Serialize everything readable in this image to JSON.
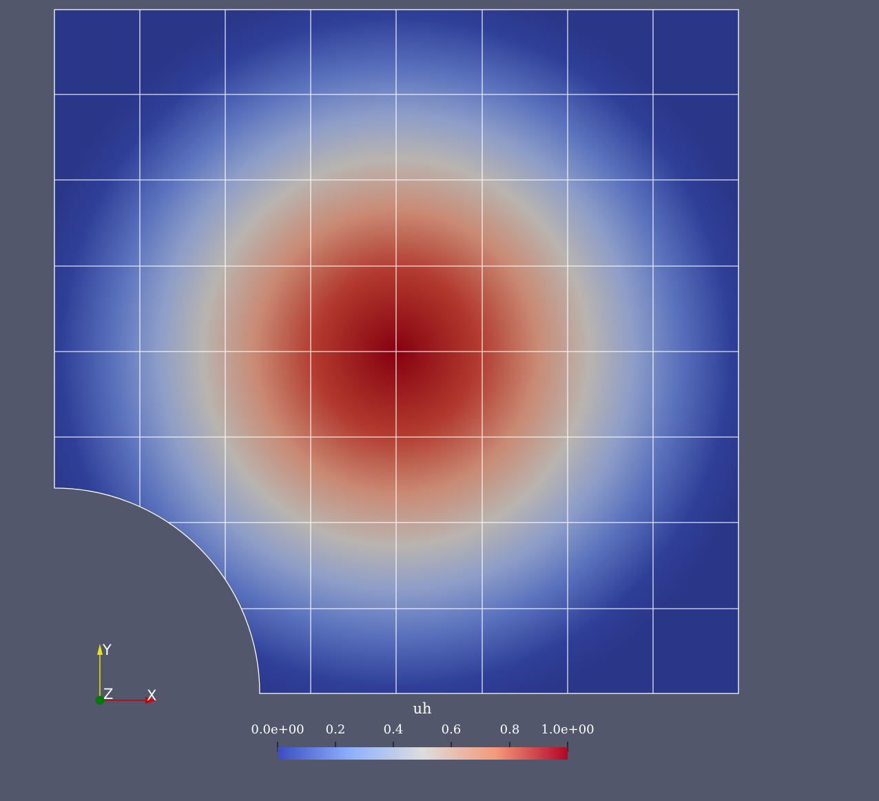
{
  "scene": {
    "background": "#52576b",
    "mesh_line_color": "#ffffff",
    "field": {
      "name": "uh",
      "peak_value": 1.0,
      "min_value": 0.0
    },
    "mesh": {
      "cells_x": 8,
      "cells_y": 8,
      "cutout": "quarter-circle, bottom-left corner"
    }
  },
  "colorbar": {
    "title": "uh",
    "colormap": "Cool to Warm",
    "range": [
      0.0,
      1.0
    ],
    "colors": [
      "#3b4cc0",
      "#8db0fe",
      "#dddddd",
      "#f49a7b",
      "#b40426"
    ],
    "ticks": [
      {
        "value": 0.0,
        "label": "0.0e+00"
      },
      {
        "value": 0.2,
        "label": "0.2"
      },
      {
        "value": 0.4,
        "label": "0.4"
      },
      {
        "value": 0.6,
        "label": "0.6"
      },
      {
        "value": 0.8,
        "label": "0.8"
      },
      {
        "value": 1.0,
        "label": "1.0e+00"
      }
    ]
  },
  "axes_triad": {
    "x_label": "X",
    "y_label": "Y",
    "z_label": "Z",
    "x_color": "#cc0000",
    "y_color": "#e8e800",
    "z_color": "#007a00"
  }
}
